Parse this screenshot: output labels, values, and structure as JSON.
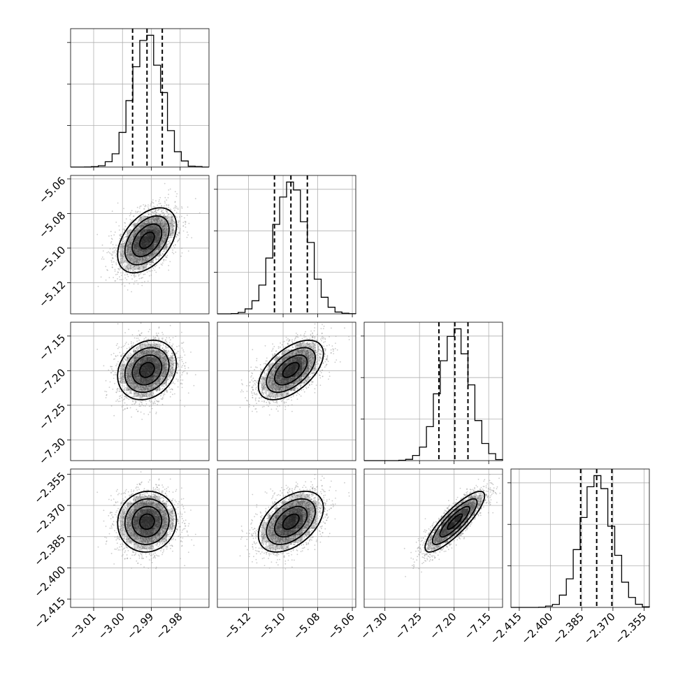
{
  "chart_data": {
    "type": "corner",
    "grid": true,
    "parameters": [
      {
        "index": 0,
        "mean": -2.9915,
        "sigma": 0.0051,
        "range": [
          -3.018,
          -2.97
        ],
        "ticks": [
          -3.01,
          -3.0,
          -2.99,
          -2.98
        ],
        "tick_labels": [
          "−3.01",
          "−3.00",
          "−2.99",
          "−2.98"
        ],
        "quantiles": [
          -2.9965,
          -2.9915,
          -2.9862
        ],
        "hist_peak_bin": 0.0001
      },
      {
        "index": 1,
        "mean": -5.0955,
        "sigma": 0.0094,
        "range": [
          -5.138,
          -5.058
        ],
        "ticks": [
          -5.12,
          -5.1,
          -5.08,
          -5.06
        ],
        "tick_labels": [
          "−5.12",
          "−5.10",
          "−5.08",
          "−5.06"
        ],
        "quantiles": [
          -5.105,
          -5.0955,
          -5.086
        ],
        "hist_peak_bin": 0.0001
      },
      {
        "index": 2,
        "mean": -7.199,
        "sigma": 0.0215,
        "range": [
          -7.33,
          -7.13
        ],
        "ticks": [
          -7.3,
          -7.25,
          -7.2,
          -7.15
        ],
        "tick_labels": [
          "−7.30",
          "−7.25",
          "−7.20",
          "−7.15"
        ],
        "quantiles": [
          -7.222,
          -7.199,
          -7.18
        ],
        "hist_peak_bin": 0.0001
      },
      {
        "index": 3,
        "mean": -2.3778,
        "sigma": 0.0073,
        "range": [
          -2.419,
          -2.3525
        ],
        "ticks": [
          -2.415,
          -2.4,
          -2.385,
          -2.37,
          -2.355
        ],
        "tick_labels": [
          "−2.415",
          "−2.400",
          "−2.385",
          "−2.370",
          "−2.355"
        ],
        "quantiles": [
          -2.3855,
          -2.3778,
          -2.3705
        ],
        "hist_peak_bin": 0.0001
      }
    ],
    "correlations": [
      {
        "pair": [
          1,
          0
        ],
        "rho": 0.45
      },
      {
        "pair": [
          2,
          0
        ],
        "rho": 0.2
      },
      {
        "pair": [
          2,
          1
        ],
        "rho": 0.55
      },
      {
        "pair": [
          3,
          0
        ],
        "rho": 0.05
      },
      {
        "pair": [
          3,
          1
        ],
        "rho": 0.45
      },
      {
        "pair": [
          3,
          2
        ],
        "rho": 0.85
      }
    ],
    "contour_levels_sigma": [
      0.5,
      1.0,
      1.5,
      2.0
    ],
    "colors": {
      "line": "#000000",
      "density": "#000000",
      "scatter": "#a0a0a0",
      "grid": "#b0b0b0"
    }
  }
}
